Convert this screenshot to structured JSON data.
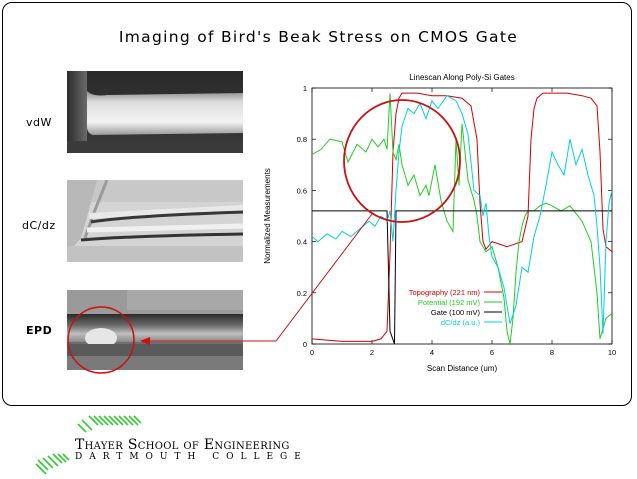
{
  "slide": {
    "title": "Imaging of Bird's Beak Stress on CMOS Gate",
    "rows": [
      {
        "label": "vdW"
      },
      {
        "label": "dC/dz"
      },
      {
        "label": "EPD"
      }
    ]
  },
  "institution": {
    "name": "Thayer School of Engineering",
    "college": "DARTMOUTH COLLEGE"
  },
  "colors": {
    "topography": "#d40000",
    "potential": "#22cc22",
    "gate": "#000000",
    "dcdz": "#00d0e0",
    "annotation": "#cc1111",
    "logo": "#33cc33"
  },
  "chart_data": {
    "type": "line",
    "title": "Linescan Along Poly-Si Gates",
    "xlabel": "Scan Distance (um)",
    "ylabel": "Normalized Measurements",
    "xlim": [
      0,
      10
    ],
    "ylim": [
      0,
      1
    ],
    "xticks": [
      0,
      2,
      4,
      6,
      8,
      10
    ],
    "yticks": [
      0,
      0.2,
      0.4,
      0.6,
      0.8,
      1
    ],
    "grid": false,
    "legend": "bottom-center",
    "series": [
      {
        "name": "Topography (221 nm)",
        "color": "#d40000",
        "x": [
          0,
          1,
          2,
          2.3,
          2.5,
          2.6,
          2.7,
          2.8,
          2.9,
          3.0,
          3.2,
          3.5,
          4.0,
          4.5,
          5.0,
          5.3,
          5.5,
          5.6,
          5.7,
          5.8,
          6.0,
          6.5,
          7.0,
          7.2,
          7.3,
          7.4,
          7.5,
          7.7,
          8.0,
          8.5,
          9.0,
          9.3,
          9.5,
          9.6,
          9.7,
          9.8,
          10
        ],
        "y": [
          0.02,
          0.01,
          0.01,
          0.02,
          0.05,
          0.35,
          0.75,
          0.9,
          0.96,
          0.98,
          0.98,
          0.98,
          0.97,
          0.97,
          0.96,
          0.93,
          0.8,
          0.55,
          0.4,
          0.37,
          0.4,
          0.38,
          0.4,
          0.5,
          0.8,
          0.92,
          0.96,
          0.98,
          0.98,
          0.98,
          0.97,
          0.96,
          0.93,
          0.75,
          0.45,
          0.38,
          0.36
        ]
      },
      {
        "name": "Potential (192 mV)",
        "color": "#22cc22",
        "x": [
          0,
          0.3,
          0.6,
          1.0,
          1.2,
          1.5,
          1.8,
          2.0,
          2.2,
          2.4,
          2.5,
          2.6,
          2.7,
          2.8,
          2.9,
          3.0,
          3.2,
          3.4,
          3.6,
          3.8,
          3.9,
          4.0,
          4.1,
          4.2,
          4.3,
          4.5,
          4.7,
          4.8,
          4.9,
          5.0,
          5.2,
          5.4,
          5.5,
          5.6,
          5.8,
          6.0,
          6.2,
          6.4,
          6.5,
          6.6,
          6.7,
          6.8,
          6.9,
          7.0,
          7.1,
          7.2,
          7.4,
          7.6,
          7.8,
          8.0,
          8.3,
          8.6,
          9.0,
          9.3,
          9.5,
          9.6,
          9.7,
          9.8,
          10
        ],
        "y": [
          0.74,
          0.76,
          0.8,
          0.79,
          0.71,
          0.78,
          0.75,
          0.8,
          0.77,
          0.8,
          0.76,
          0.98,
          0.75,
          0.72,
          0.78,
          0.7,
          0.62,
          0.66,
          0.58,
          0.62,
          0.58,
          0.64,
          0.7,
          0.63,
          0.56,
          0.48,
          0.44,
          0.8,
          0.62,
          0.86,
          0.64,
          0.56,
          0.5,
          0.4,
          0.36,
          0.38,
          0.3,
          0.18,
          0.05,
          0.0,
          0.1,
          0.28,
          0.4,
          0.46,
          0.5,
          0.52,
          0.52,
          0.54,
          0.55,
          0.54,
          0.52,
          0.54,
          0.48,
          0.4,
          0.2,
          0.02,
          0.06,
          0.1,
          0.12
        ]
      },
      {
        "name": "Gate (100 mV)",
        "color": "#000000",
        "x": [
          0,
          2.4,
          2.5,
          2.6,
          2.75,
          2.8,
          10
        ],
        "y": [
          0.52,
          0.52,
          0.52,
          0.05,
          0.0,
          0.52,
          0.52
        ]
      },
      {
        "name": "dC/dz (a.u.)",
        "color": "#00d0e0",
        "x": [
          0,
          0.2,
          0.5,
          0.8,
          1.0,
          1.3,
          1.6,
          1.9,
          2.1,
          2.3,
          2.5,
          2.6,
          2.7,
          2.8,
          2.9,
          3.0,
          3.2,
          3.4,
          3.6,
          3.8,
          4.0,
          4.2,
          4.5,
          4.8,
          5.0,
          5.2,
          5.4,
          5.6,
          5.7,
          5.8,
          5.9,
          6.0,
          6.2,
          6.4,
          6.6,
          6.8,
          7.0,
          7.2,
          7.4,
          7.6,
          7.8,
          8.0,
          8.2,
          8.4,
          8.6,
          8.8,
          9.0,
          9.2,
          9.4,
          9.5,
          9.6,
          9.7,
          9.8,
          9.9,
          10
        ],
        "y": [
          0.42,
          0.4,
          0.43,
          0.41,
          0.44,
          0.42,
          0.45,
          0.48,
          0.46,
          0.5,
          0.48,
          0.52,
          0.4,
          0.6,
          0.75,
          0.85,
          0.92,
          0.9,
          0.94,
          0.88,
          0.95,
          0.92,
          0.97,
          0.95,
          0.9,
          0.82,
          0.6,
          0.58,
          0.5,
          0.55,
          0.42,
          0.34,
          0.3,
          0.22,
          0.08,
          0.15,
          0.3,
          0.28,
          0.42,
          0.5,
          0.62,
          0.75,
          0.7,
          0.66,
          0.8,
          0.7,
          0.76,
          0.66,
          0.58,
          0.46,
          0.3,
          0.04,
          0.4,
          0.55,
          0.6
        ]
      }
    ]
  }
}
